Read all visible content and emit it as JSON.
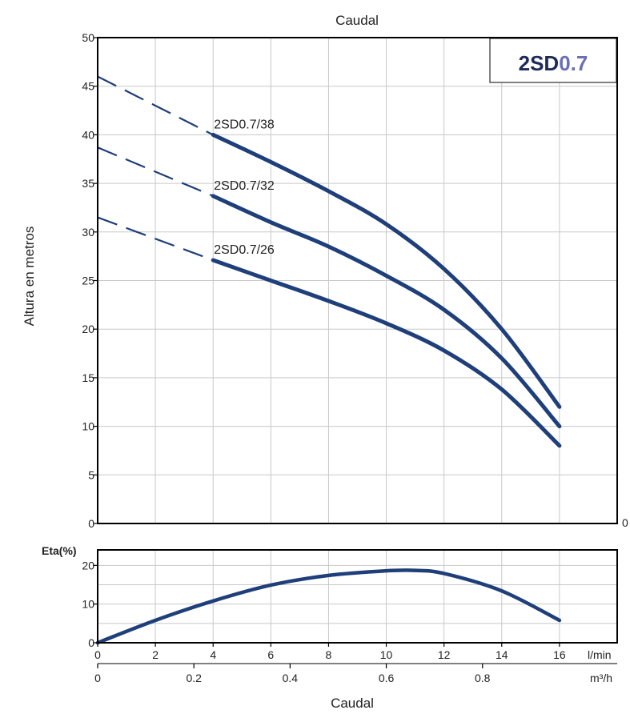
{
  "chart_data": [
    {
      "type": "line",
      "title": "Caudal",
      "ylabel": "Altura en metros",
      "xlim": [
        0,
        18
      ],
      "ylim": [
        0,
        50
      ],
      "x_unit": "l/min",
      "x_ticks": [
        0,
        2,
        4,
        6,
        8,
        10,
        12,
        14,
        16
      ],
      "y_ticks": [
        0,
        5,
        10,
        15,
        20,
        25,
        30,
        35,
        40,
        45,
        50
      ],
      "right_axis_label": "0",
      "grid": true,
      "badge": {
        "prefix": "2SD",
        "suffix": "0.7",
        "prefix_color": "#1e2a5a",
        "suffix_color": "#6b6fb3"
      },
      "series_color": "#1f3f7a",
      "series": [
        {
          "name": "2SD0.7/38",
          "dashed_x": [
            0,
            4
          ],
          "x": [
            0,
            2,
            4,
            6,
            8,
            10,
            12,
            14,
            16
          ],
          "y": [
            46,
            43,
            40,
            37.2,
            34.2,
            30.8,
            26.2,
            20,
            12
          ]
        },
        {
          "name": "2SD0.7/32",
          "dashed_x": [
            0,
            4
          ],
          "x": [
            0,
            2,
            4,
            6,
            8,
            10,
            12,
            14,
            16
          ],
          "y": [
            38.7,
            36.2,
            33.7,
            31,
            28.5,
            25.5,
            22,
            17,
            10
          ]
        },
        {
          "name": "2SD0.7/26",
          "dashed_x": [
            0,
            4
          ],
          "x": [
            0,
            2,
            4,
            6,
            8,
            10,
            12,
            14,
            16
          ],
          "y": [
            31.5,
            29.3,
            27.1,
            25,
            22.9,
            20.6,
            17.8,
            13.8,
            8
          ]
        }
      ]
    },
    {
      "type": "line",
      "ylabel": "Eta(%)",
      "xlim": [
        0,
        18
      ],
      "ylim": [
        0,
        24
      ],
      "y_ticks": [
        0,
        10,
        20
      ],
      "x_ticks": [
        0,
        2,
        4,
        6,
        8,
        10,
        12,
        14,
        16
      ],
      "x_unit": "l/min",
      "secondary_x_ticks": [
        "0",
        "0.2",
        "0.4",
        "0.6",
        "0.8"
      ],
      "secondary_x_values_m3h": [
        0,
        0.2,
        0.4,
        0.6,
        0.8
      ],
      "secondary_x_unit": "m³/h",
      "xlabel": "Caudal",
      "grid": true,
      "series": [
        {
          "x": [
            0,
            2,
            4,
            6,
            8,
            10,
            11,
            12,
            14,
            16
          ],
          "y": [
            0,
            5.8,
            10.8,
            14.9,
            17.4,
            18.6,
            18.7,
            17.9,
            13.4,
            5.8
          ]
        }
      ]
    }
  ]
}
